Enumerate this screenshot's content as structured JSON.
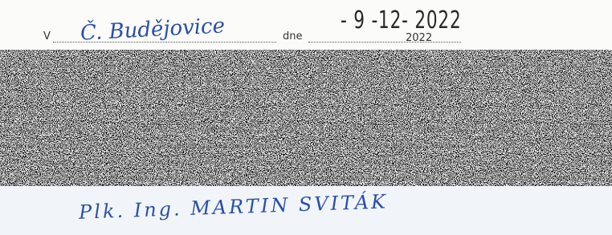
{
  "form": {
    "place_prefix": "V",
    "place": "Č. Budějovice",
    "date_prefix": "dne",
    "date_stamp": "- 9 -12- 2022",
    "date_year": "2022"
  },
  "signature": {
    "name": "Plk. Ing. MARTIN SVITÁK"
  }
}
